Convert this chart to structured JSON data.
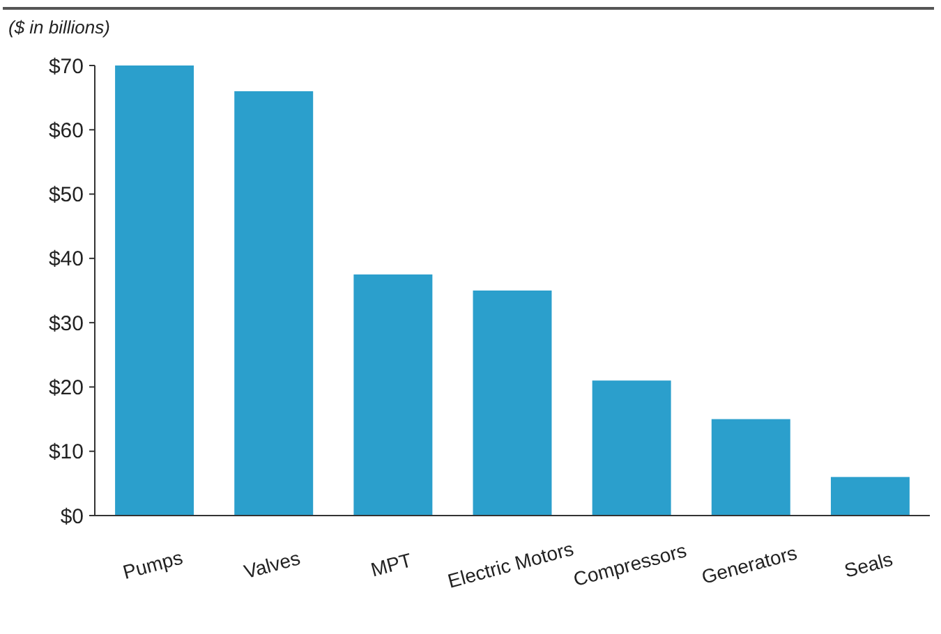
{
  "chart_data": {
    "type": "bar",
    "ylabel": "($ in billions)",
    "categories": [
      "Pumps",
      "Valves",
      "MPT",
      "Electric Motors",
      "Compressors",
      "Generators",
      "Seals"
    ],
    "values": [
      70,
      66,
      37.5,
      35,
      21,
      15,
      6
    ],
    "color": "#2b9fcc",
    "ylim": [
      0,
      70
    ],
    "yticks": [
      {
        "value": 0,
        "label": "$0"
      },
      {
        "value": 10,
        "label": "$10"
      },
      {
        "value": 20,
        "label": "$20"
      },
      {
        "value": 30,
        "label": "$30"
      },
      {
        "value": 40,
        "label": "$40"
      },
      {
        "value": 50,
        "label": "$50"
      },
      {
        "value": 60,
        "label": "$60"
      },
      {
        "value": 70,
        "label": "$70"
      }
    ],
    "grid": false
  }
}
